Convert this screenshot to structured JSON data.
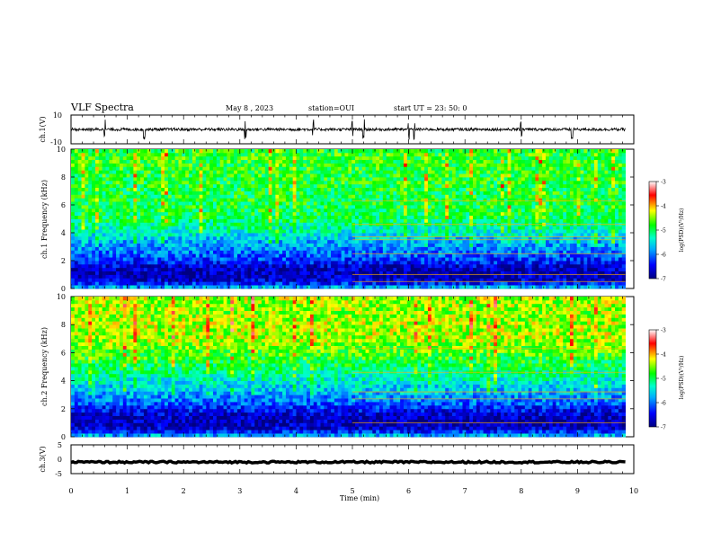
{
  "header": {
    "title": "VLF Spectra",
    "date": "May 8 , 2023",
    "station": "station=OUI",
    "start": "start UT = 23: 50: 0"
  },
  "colors": {
    "scale": [
      "#000080",
      "#0000ff",
      "#00aaff",
      "#00ffcc",
      "#00ff00",
      "#ffff00",
      "#ff0000",
      "#ffffff"
    ]
  },
  "chart_data": [
    {
      "type": "line",
      "panel": "ch1-waveform",
      "ylabel": "ch.1(V)",
      "ylim": [
        -10,
        10
      ],
      "y_ticks": [
        "10",
        "-10"
      ],
      "x_range_min": [
        0,
        10
      ],
      "baseline_v": 0,
      "noise_amplitude_v": 1,
      "spikes_min": [
        0.6,
        1.3,
        3.1,
        4.3,
        5.0,
        5.2,
        6.0,
        6.1,
        8.0,
        8.9
      ]
    },
    {
      "type": "heatmap",
      "panel": "ch1-spectrogram",
      "ylabel": "ch.1 Frequency (kHz)",
      "ylim_khz": [
        0,
        10
      ],
      "y_ticks": [
        "0",
        "2",
        "4",
        "6",
        "8",
        "10"
      ],
      "x_range_min": [
        0,
        9.85
      ],
      "colorbar": {
        "label": "log(PSD)(V²/Hz)",
        "ticks": [
          "-3",
          "-4",
          "-5",
          "-6",
          "-7"
        ],
        "range": [
          -7,
          -3
        ]
      },
      "psd_profile": {
        "freq_khz": [
          0,
          0.5,
          1.0,
          1.5,
          2.0,
          2.5,
          3.0,
          3.5,
          4.0,
          5.0,
          6.0,
          7.0,
          8.0,
          9.0,
          10.0
        ],
        "log_psd": [
          -5.5,
          -6.6,
          -6.8,
          -6.7,
          -6.3,
          -6.0,
          -5.9,
          -5.7,
          -5.4,
          -5.0,
          -4.9,
          -4.9,
          -4.85,
          -4.8,
          -4.8
        ]
      },
      "lines_khz": [
        0.5,
        1.0,
        2.5,
        3.5,
        3.7,
        4.6,
        6.3
      ],
      "line_start_min": 5.0,
      "line_log_psd": -4.0
    },
    {
      "type": "heatmap",
      "panel": "ch2-spectrogram",
      "ylabel": "ch.2 Frequency (kHz)",
      "ylim_khz": [
        0,
        10
      ],
      "y_ticks": [
        "0",
        "2",
        "4",
        "6",
        "8",
        "10"
      ],
      "x_range_min": [
        0,
        9.85
      ],
      "colorbar": {
        "label": "log(PSD)(V²/Hz)",
        "ticks": [
          "-3",
          "-4",
          "-5",
          "-6",
          "-7"
        ],
        "range": [
          -7,
          -3
        ]
      },
      "psd_profile": {
        "freq_khz": [
          0,
          0.5,
          1.0,
          1.5,
          2.0,
          2.5,
          3.0,
          3.5,
          4.0,
          4.5,
          5.0,
          6.0,
          7.0,
          8.0,
          9.0,
          10.0
        ],
        "log_psd": [
          -5.5,
          -6.6,
          -6.8,
          -6.7,
          -6.4,
          -6.0,
          -5.8,
          -5.6,
          -5.4,
          -5.2,
          -5.0,
          -4.7,
          -4.4,
          -4.4,
          -4.5,
          -4.4
        ]
      },
      "lines_khz": [
        1.0,
        2.7,
        3.2,
        4.6,
        6.3
      ],
      "line_start_min": 5.0,
      "line_log_psd": -4.0
    },
    {
      "type": "line",
      "panel": "ch3-waveform",
      "ylabel": "ch.3(V)",
      "ylim": [
        -5,
        5
      ],
      "y_ticks": [
        "5",
        "0",
        "-5"
      ],
      "x_range_min": [
        0,
        10
      ],
      "baseline_v": -1,
      "noise_amplitude_v": 0.3
    }
  ],
  "xaxis": {
    "label": "Time (min)",
    "ticks": [
      "0",
      "1",
      "2",
      "3",
      "4",
      "5",
      "6",
      "7",
      "8",
      "9",
      "10"
    ],
    "range": [
      0,
      10
    ]
  }
}
